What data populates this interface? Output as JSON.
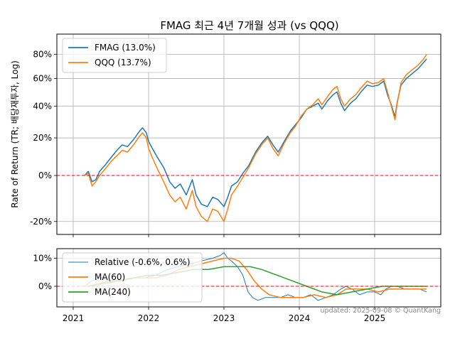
{
  "chart_data": [
    {
      "type": "line",
      "title": "FMAG 최근 4년 7개월 성과 (vs QQQ)",
      "ylabel": "Rate of Return (TR; 배당재투자, Log)",
      "yscale": "log",
      "ylim": [
        -25,
        86
      ],
      "yticks": [
        "80%",
        "60%",
        "40%",
        "20%",
        "0%",
        "-20%"
      ],
      "xlim": [
        2021.0,
        2025.9
      ],
      "grid": true,
      "legend_position": "top-left",
      "reference_line": {
        "value": 0,
        "color": "#ff0000",
        "style": "dashed"
      },
      "series": [
        {
          "name": "FMAG (13.0%)",
          "color": "#1f77b4",
          "x": [
            2021.15,
            2021.2,
            2021.25,
            2021.3,
            2021.35,
            2021.42,
            2021.5,
            2021.58,
            2021.65,
            2021.72,
            2021.8,
            2021.88,
            2021.92,
            2021.97,
            2022.0,
            2022.05,
            2022.12,
            2022.2,
            2022.28,
            2022.35,
            2022.42,
            2022.5,
            2022.58,
            2022.63,
            2022.7,
            2022.78,
            2022.85,
            2022.92,
            2023.0,
            2023.05,
            2023.1,
            2023.18,
            2023.25,
            2023.33,
            2023.42,
            2023.5,
            2023.58,
            2023.65,
            2023.72,
            2023.8,
            2023.88,
            2023.95,
            2024.02,
            2024.1,
            2024.18,
            2024.25,
            2024.3,
            2024.38,
            2024.45,
            2024.5,
            2024.55,
            2024.6,
            2024.68,
            2024.75,
            2024.82,
            2024.9,
            2024.97,
            2025.05,
            2025.12,
            2025.17,
            2025.22,
            2025.27,
            2025.3,
            2025.35,
            2025.42,
            2025.5,
            2025.58,
            2025.65,
            2025.69
          ],
          "y": [
            0,
            2,
            -3,
            -2,
            2,
            5,
            9,
            13,
            16,
            15,
            19,
            24,
            26,
            23,
            18,
            14,
            9,
            4,
            -3,
            -6,
            -4,
            -9,
            -2,
            -9,
            -13,
            -14,
            -10,
            -11,
            -14,
            -10,
            -5,
            -3,
            1,
            5,
            12,
            17,
            21,
            16,
            12,
            18,
            24,
            28,
            32,
            38,
            40,
            42,
            38,
            44,
            48,
            50,
            42,
            37,
            42,
            45,
            50,
            55,
            54,
            55,
            58,
            48,
            41,
            33,
            43,
            55,
            60,
            64,
            68,
            73,
            76
          ]
        },
        {
          "name": "QQQ (13.7%)",
          "color": "#ff7f0e",
          "x": [
            2021.15,
            2021.2,
            2021.25,
            2021.3,
            2021.35,
            2021.42,
            2021.5,
            2021.58,
            2021.65,
            2021.72,
            2021.8,
            2021.88,
            2021.92,
            2021.97,
            2022.0,
            2022.05,
            2022.12,
            2022.2,
            2022.28,
            2022.35,
            2022.42,
            2022.5,
            2022.58,
            2022.63,
            2022.7,
            2022.78,
            2022.85,
            2022.92,
            2023.0,
            2023.05,
            2023.1,
            2023.18,
            2023.25,
            2023.33,
            2023.42,
            2023.5,
            2023.58,
            2023.65,
            2023.72,
            2023.8,
            2023.88,
            2023.95,
            2024.02,
            2024.1,
            2024.18,
            2024.25,
            2024.3,
            2024.38,
            2024.45,
            2024.5,
            2024.55,
            2024.6,
            2024.68,
            2024.75,
            2024.82,
            2024.9,
            2024.97,
            2025.05,
            2025.12,
            2025.17,
            2025.22,
            2025.27,
            2025.3,
            2025.35,
            2025.42,
            2025.5,
            2025.58,
            2025.65,
            2025.69
          ],
          "y": [
            0,
            1,
            -5,
            -3,
            0,
            3,
            7,
            10,
            13,
            12,
            16,
            21,
            23,
            20,
            14,
            9,
            3,
            -3,
            -9,
            -12,
            -10,
            -15,
            -7,
            -14,
            -18,
            -20,
            -15,
            -16,
            -20,
            -15,
            -9,
            -5,
            -1,
            4,
            11,
            16,
            20,
            14,
            10,
            17,
            23,
            27,
            33,
            38,
            41,
            45,
            41,
            47,
            52,
            54,
            45,
            40,
            45,
            48,
            53,
            58,
            56,
            57,
            60,
            50,
            40,
            31,
            42,
            57,
            63,
            67,
            71,
            76,
            80
          ]
        }
      ]
    },
    {
      "type": "line",
      "ylim": [
        -7,
        14
      ],
      "yticks": [
        "10%",
        "0%"
      ],
      "xticks": [
        "2021",
        "2022",
        "2023",
        "2024",
        "2025"
      ],
      "grid": true,
      "legend_position": "top-left",
      "reference_line": {
        "value": 0,
        "color": "#ff0000",
        "style": "dashed"
      },
      "series": [
        {
          "name": "Relative (-0.6%, 0.6%)",
          "color": "#1f77b4",
          "x": [
            2021.15,
            2021.25,
            2021.35,
            2021.5,
            2021.65,
            2021.8,
            2021.95,
            2022.1,
            2022.25,
            2022.4,
            2022.55,
            2022.7,
            2022.85,
            2022.95,
            2023.0,
            2023.05,
            2023.1,
            2023.18,
            2023.25,
            2023.32,
            2023.38,
            2023.45,
            2023.55,
            2023.65,
            2023.75,
            2023.85,
            2023.95,
            2024.05,
            2024.15,
            2024.25,
            2024.35,
            2024.45,
            2024.55,
            2024.62,
            2024.7,
            2024.8,
            2024.9,
            2025.0,
            2025.08,
            2025.15,
            2025.22,
            2025.3,
            2025.4,
            2025.5,
            2025.6,
            2025.69
          ],
          "y": [
            0,
            2,
            3,
            2,
            2,
            3,
            3,
            4,
            6,
            7,
            8,
            9,
            10,
            11,
            12,
            10,
            9,
            7,
            4,
            -2,
            -4,
            -5,
            -4,
            -4,
            -4,
            -3,
            -4,
            -4,
            -3,
            -5,
            -4,
            -3,
            -1,
            0,
            -1,
            -3,
            -2,
            -2,
            -3,
            -1,
            0,
            0,
            -1,
            -1,
            -1,
            -2
          ]
        },
        {
          "name": "MA(60)",
          "color": "#ff7f0e",
          "x": [
            2021.2,
            2021.35,
            2021.5,
            2021.65,
            2021.8,
            2021.95,
            2022.1,
            2022.25,
            2022.4,
            2022.55,
            2022.7,
            2022.85,
            2023.0,
            2023.1,
            2023.2,
            2023.3,
            2023.4,
            2023.5,
            2023.6,
            2023.75,
            2023.9,
            2024.05,
            2024.2,
            2024.35,
            2024.5,
            2024.62,
            2024.75,
            2024.9,
            2025.05,
            2025.2,
            2025.35,
            2025.5,
            2025.69
          ],
          "y": [
            0,
            1,
            2,
            2,
            3,
            3,
            3,
            4,
            6,
            7,
            8,
            9,
            10,
            10,
            9,
            6,
            2,
            -1,
            -3,
            -4,
            -4,
            -4,
            -3,
            -4,
            -3,
            -1,
            -1,
            -1,
            -2,
            -1,
            -1,
            -1,
            -1
          ]
        },
        {
          "name": "MA(240)",
          "color": "#2ca02c",
          "x": [
            2021.2,
            2021.4,
            2021.6,
            2021.8,
            2022.0,
            2022.2,
            2022.4,
            2022.6,
            2022.8,
            2023.0,
            2023.2,
            2023.35,
            2023.5,
            2023.7,
            2023.9,
            2024.1,
            2024.3,
            2024.5,
            2024.7,
            2024.9,
            2025.1,
            2025.3,
            2025.5,
            2025.69
          ],
          "y": [
            0,
            1,
            2,
            3,
            4,
            4,
            5,
            6,
            6,
            7,
            7,
            7,
            6,
            4,
            2,
            0,
            -2,
            -3,
            -2,
            -1,
            0,
            0,
            0,
            0
          ]
        }
      ]
    }
  ],
  "watermark": "updated: 2025-09-08 © QuantKang"
}
